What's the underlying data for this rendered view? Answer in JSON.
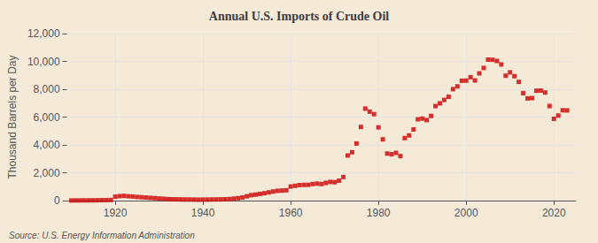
{
  "chart_data": {
    "type": "scatter",
    "title": "Annual U.S. Imports of Crude Oil",
    "ylabel": "Thousand Barrels per Day",
    "annotations": [
      "Source: U.S. Energy Information Administration"
    ],
    "color": "#cc0000",
    "marker": "square",
    "grid": true,
    "xlim": [
      1909,
      2025
    ],
    "xticks": [
      1920,
      1940,
      1960,
      1980,
      2000,
      2020
    ],
    "ylim": [
      0,
      12000
    ],
    "yticks": [
      0,
      {
        "value": 2000,
        "label": "2,000"
      },
      {
        "value": 4000,
        "label": "4,000"
      },
      {
        "value": 6000,
        "label": "6,000"
      },
      {
        "value": 8000,
        "label": "8,000"
      },
      {
        "value": 10000,
        "label": "10,000"
      },
      {
        "value": 12000,
        "label": "12,000"
      }
    ],
    "x": [
      1910,
      1911,
      1912,
      1913,
      1914,
      1915,
      1916,
      1917,
      1918,
      1919,
      1920,
      1921,
      1922,
      1923,
      1924,
      1925,
      1926,
      1927,
      1928,
      1929,
      1930,
      1931,
      1932,
      1933,
      1934,
      1935,
      1936,
      1937,
      1938,
      1939,
      1940,
      1941,
      1942,
      1943,
      1944,
      1945,
      1946,
      1947,
      1948,
      1949,
      1950,
      1951,
      1952,
      1953,
      1954,
      1955,
      1956,
      1957,
      1958,
      1959,
      1960,
      1961,
      1962,
      1963,
      1964,
      1965,
      1966,
      1967,
      1968,
      1969,
      1970,
      1971,
      1972,
      1973,
      1974,
      1975,
      1976,
      1977,
      1978,
      1979,
      1980,
      1981,
      1982,
      1983,
      1984,
      1985,
      1986,
      1987,
      1988,
      1989,
      1990,
      1991,
      1992,
      1993,
      1994,
      1995,
      1996,
      1997,
      1998,
      1999,
      2000,
      2001,
      2002,
      2003,
      2004,
      2005,
      2006,
      2007,
      2008,
      2009,
      2010,
      2011,
      2012,
      2013,
      2014,
      2015,
      2016,
      2017,
      2018,
      2019,
      2020,
      2021,
      2022,
      2023
    ],
    "values": [
      8,
      10,
      12,
      15,
      18,
      20,
      25,
      30,
      35,
      42,
      280,
      320,
      340,
      310,
      290,
      260,
      240,
      220,
      200,
      175,
      150,
      130,
      110,
      95,
      90,
      85,
      80,
      78,
      72,
      65,
      70,
      75,
      80,
      85,
      90,
      95,
      110,
      140,
      175,
      220,
      310,
      390,
      430,
      480,
      530,
      590,
      650,
      700,
      720,
      740,
      1010,
      1060,
      1110,
      1130,
      1130,
      1190,
      1220,
      1190,
      1270,
      1340,
      1320,
      1430,
      1690,
      3240,
      3470,
      4100,
      5290,
      6610,
      6390,
      6210,
      5260,
      4400,
      3380,
      3330,
      3430,
      3200,
      4490,
      4680,
      5110,
      5840,
      5890,
      5782,
      6083,
      6788,
      6988,
      7230,
      7458,
      8007,
      8205,
      8610,
      8620,
      8866,
      8632,
      9141,
      9530,
      10126,
      10118,
      10032,
      9783,
      8970,
      9213,
      8938,
      8530,
      7720,
      7340,
      7363,
      7895,
      7907,
      7764,
      6795,
      5876,
      6112,
      6490,
      6480
    ]
  }
}
